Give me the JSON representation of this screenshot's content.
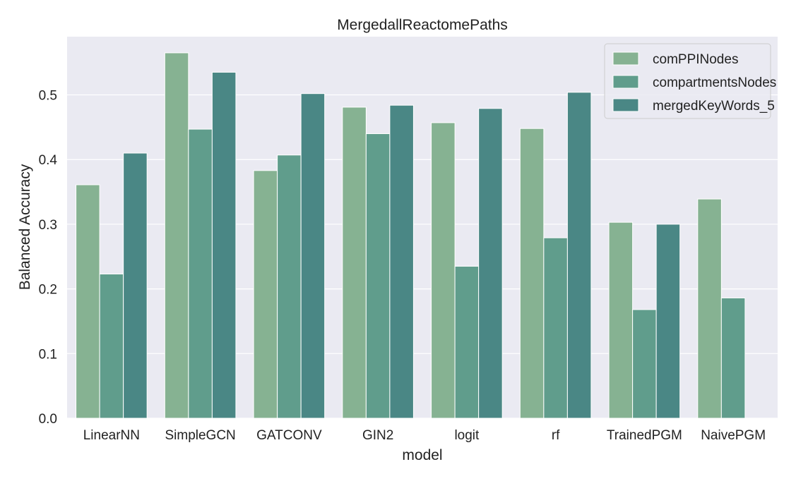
{
  "chart_data": {
    "type": "bar",
    "title": "MergedallReactomePaths",
    "xlabel": "model",
    "ylabel": "Balanced Accuracy",
    "categories": [
      "LinearNN",
      "SimpleGCN",
      "GATCONV",
      "GIN2",
      "logit",
      "rf",
      "TrainedPGM",
      "NaivePGM"
    ],
    "series": [
      {
        "name": "comPPINodes",
        "color": "#86b292",
        "values": [
          0.361,
          0.565,
          0.383,
          0.481,
          0.457,
          0.448,
          0.303,
          0.339
        ]
      },
      {
        "name": "compartmentsNodes",
        "color": "#609d8c",
        "values": [
          0.223,
          0.447,
          0.407,
          0.44,
          0.235,
          0.279,
          0.168,
          0.186
        ]
      },
      {
        "name": "mergedKeyWords_5",
        "color": "#4a8785",
        "values": [
          0.41,
          0.535,
          0.502,
          0.484,
          0.479,
          0.504,
          0.3,
          null
        ]
      }
    ],
    "ylim": [
      0,
      0.59
    ],
    "yticks": [
      0.0,
      0.1,
      0.2,
      0.3,
      0.4,
      0.5
    ],
    "ytick_labels": [
      "0.0",
      "0.1",
      "0.2",
      "0.3",
      "0.4",
      "0.5"
    ],
    "grid": true,
    "legend_position": "top-right",
    "background_color": "#eaeaf2"
  }
}
